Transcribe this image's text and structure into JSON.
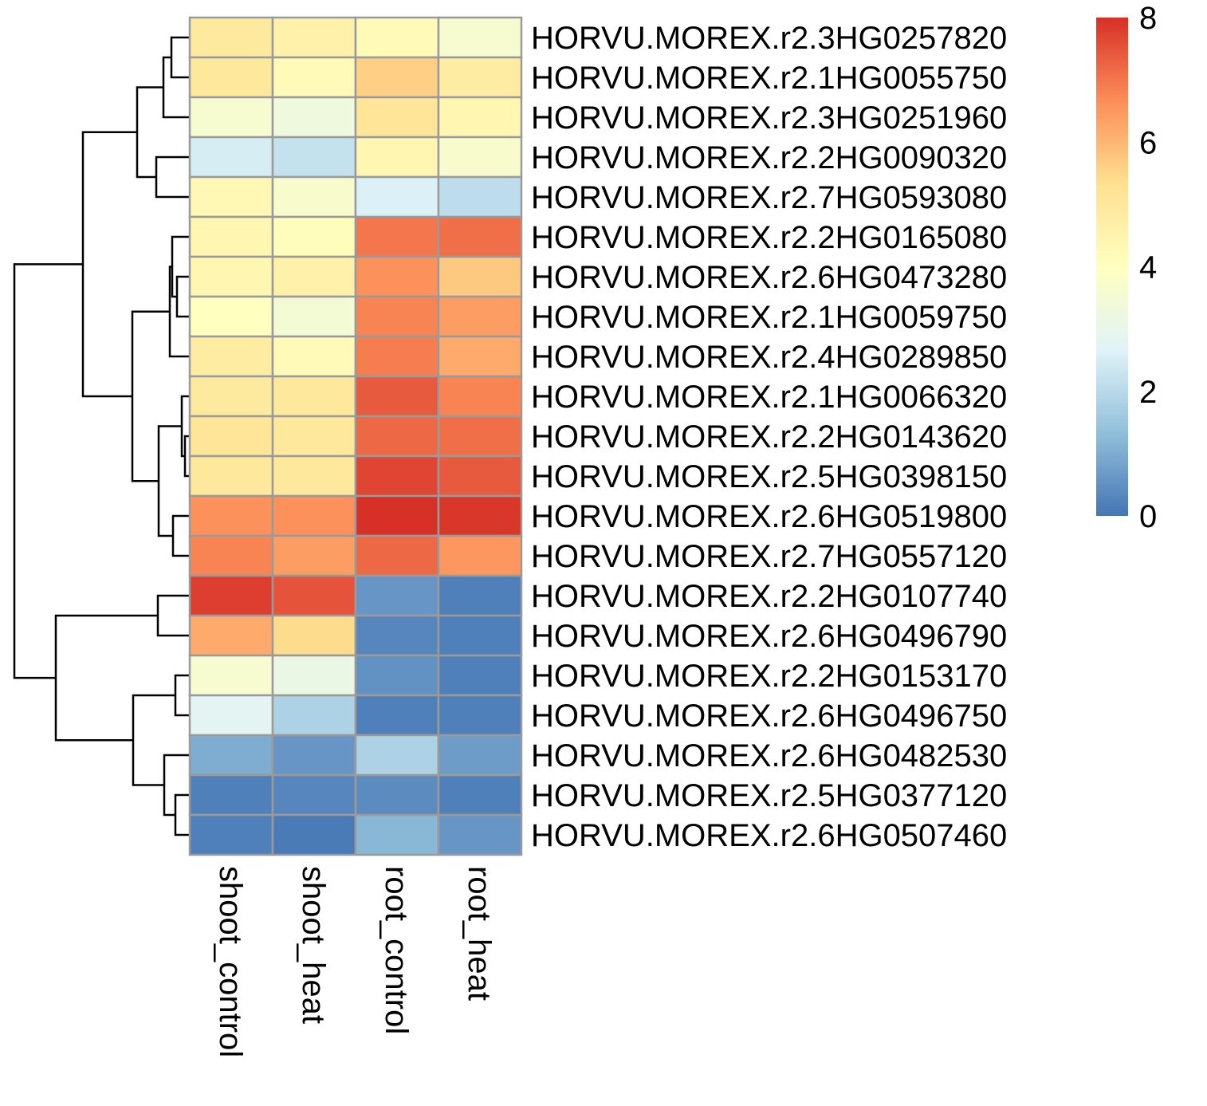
{
  "chart_data": {
    "type": "heatmap",
    "columns": [
      "shoot_control",
      "shoot_heat",
      "root_control",
      "root_heat"
    ],
    "rows": [
      "HORVU.MOREX.r2.3HG0257820",
      "HORVU.MOREX.r2.1HG0055750",
      "HORVU.MOREX.r2.3HG0251960",
      "HORVU.MOREX.r2.2HG0090320",
      "HORVU.MOREX.r2.7HG0593080",
      "HORVU.MOREX.r2.2HG0165080",
      "HORVU.MOREX.r2.6HG0473280",
      "HORVU.MOREX.r2.1HG0059750",
      "HORVU.MOREX.r2.4HG0289850",
      "HORVU.MOREX.r2.1HG0066320",
      "HORVU.MOREX.r2.2HG0143620",
      "HORVU.MOREX.r2.5HG0398150",
      "HORVU.MOREX.r2.6HG0519800",
      "HORVU.MOREX.r2.7HG0557120",
      "HORVU.MOREX.r2.2HG0107740",
      "HORVU.MOREX.r2.6HG0496790",
      "HORVU.MOREX.r2.2HG0153170",
      "HORVU.MOREX.r2.6HG0496750",
      "HORVU.MOREX.r2.6HG0482530",
      "HORVU.MOREX.r2.5HG0377120",
      "HORVU.MOREX.r2.6HG0507460"
    ],
    "values": [
      [
        4.9,
        4.6,
        4.2,
        3.6
      ],
      [
        5.0,
        4.2,
        5.6,
        4.8
      ],
      [
        3.6,
        3.3,
        5.1,
        4.4
      ],
      [
        2.5,
        2.2,
        4.4,
        3.7
      ],
      [
        4.3,
        3.7,
        2.6,
        2.1
      ],
      [
        4.4,
        4.1,
        7.0,
        7.1
      ],
      [
        4.4,
        4.6,
        6.6,
        5.7
      ],
      [
        4.0,
        3.5,
        6.8,
        6.4
      ],
      [
        4.8,
        4.2,
        6.9,
        6.2
      ],
      [
        4.9,
        5.0,
        7.4,
        6.8
      ],
      [
        5.1,
        5.0,
        7.2,
        7.1
      ],
      [
        5.0,
        5.0,
        7.7,
        7.4
      ],
      [
        6.6,
        6.6,
        8.0,
        7.9
      ],
      [
        6.8,
        6.4,
        7.2,
        6.5
      ],
      [
        7.8,
        7.5,
        0.6,
        0.2
      ],
      [
        6.2,
        5.4,
        0.3,
        0.2
      ],
      [
        3.6,
        3.1,
        0.5,
        0.2
      ],
      [
        2.8,
        1.8,
        0.2,
        0.2
      ],
      [
        1.0,
        0.6,
        1.8,
        0.7
      ],
      [
        0.2,
        0.3,
        0.4,
        0.2
      ],
      [
        0.2,
        0.1,
        1.2,
        0.6
      ]
    ],
    "color_scale": {
      "min": 0,
      "max": 8,
      "ticks": [
        "0",
        "2",
        "4",
        "6",
        "8"
      ],
      "colors": [
        "#4575b4",
        "#91bfdb",
        "#e0f3f8",
        "#ffffbf",
        "#fee090",
        "#fc8d59",
        "#d73027"
      ]
    },
    "cell_border_color": "#9a9a9a",
    "row_dendrogram": true,
    "legend_placement": "top-right"
  }
}
